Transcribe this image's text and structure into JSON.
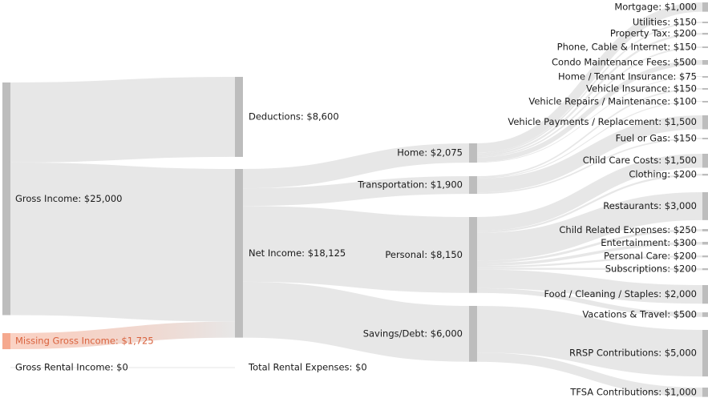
{
  "chart_data": {
    "type": "sankey",
    "title": "",
    "currency": "$",
    "nodes": [
      {
        "id": "gross",
        "label": "Gross Income: $25,000",
        "value": 25000
      },
      {
        "id": "missing",
        "label": "Missing Gross Income: $1,725",
        "value": 1725
      },
      {
        "id": "rental",
        "label": "Gross Rental Income: $0",
        "value": 0
      },
      {
        "id": "deductions",
        "label": "Deductions: $8,600",
        "value": 8600
      },
      {
        "id": "net",
        "label": "Net Income: $18,125",
        "value": 18125
      },
      {
        "id": "rentalexp",
        "label": "Total Rental Expenses: $0",
        "value": 0
      },
      {
        "id": "home",
        "label": "Home: $2,075",
        "value": 2075
      },
      {
        "id": "transport",
        "label": "Transportation: $1,900",
        "value": 1900
      },
      {
        "id": "personal",
        "label": "Personal: $8,150",
        "value": 8150
      },
      {
        "id": "savings",
        "label": "Savings/Debt: $6,000",
        "value": 6000
      },
      {
        "id": "mortgage",
        "label": "Mortgage: $1,000",
        "value": 1000
      },
      {
        "id": "utilities",
        "label": "Utilities: $150",
        "value": 150
      },
      {
        "id": "proptax",
        "label": "Property Tax: $200",
        "value": 200
      },
      {
        "id": "phone",
        "label": "Phone, Cable & Internet: $150",
        "value": 150
      },
      {
        "id": "condo",
        "label": "Condo Maintenance Fees: $500",
        "value": 500
      },
      {
        "id": "homeins",
        "label": "Home / Tenant Insurance: $75",
        "value": 75
      },
      {
        "id": "vehins",
        "label": "Vehicle Insurance: $150",
        "value": 150
      },
      {
        "id": "vehrep",
        "label": "Vehicle Repairs / Maintenance: $100",
        "value": 100
      },
      {
        "id": "vehpay",
        "label": "Vehicle Payments / Replacement: $1,500",
        "value": 1500
      },
      {
        "id": "fuel",
        "label": "Fuel or Gas: $150",
        "value": 150
      },
      {
        "id": "childcare",
        "label": "Child Care Costs: $1,500",
        "value": 1500
      },
      {
        "id": "clothing",
        "label": "Clothing: $200",
        "value": 200
      },
      {
        "id": "restaurants",
        "label": "Restaurants: $3,000",
        "value": 3000
      },
      {
        "id": "childrel",
        "label": "Child Related Expenses: $250",
        "value": 250
      },
      {
        "id": "entertain",
        "label": "Entertainment: $300",
        "value": 300
      },
      {
        "id": "perscare",
        "label": "Personal Care: $200",
        "value": 200
      },
      {
        "id": "subs",
        "label": "Subscriptions: $200",
        "value": 200
      },
      {
        "id": "food",
        "label": "Food / Cleaning / Staples: $2,000",
        "value": 2000
      },
      {
        "id": "vacations",
        "label": "Vacations & Travel: $500",
        "value": 500
      },
      {
        "id": "rrsp",
        "label": "RRSP Contributions: $5,000",
        "value": 5000
      },
      {
        "id": "tfsa",
        "label": "TFSA Contributions: $1,000",
        "value": 1000
      }
    ],
    "links": [
      {
        "source": "gross",
        "target": "deductions",
        "value": 8600
      },
      {
        "source": "gross",
        "target": "net",
        "value": 16400
      },
      {
        "source": "missing",
        "target": "net",
        "value": 1725
      },
      {
        "source": "rental",
        "target": "rentalexp",
        "value": 0
      },
      {
        "source": "net",
        "target": "home",
        "value": 2075
      },
      {
        "source": "net",
        "target": "transport",
        "value": 1900
      },
      {
        "source": "net",
        "target": "personal",
        "value": 8150
      },
      {
        "source": "net",
        "target": "savings",
        "value": 6000
      },
      {
        "source": "home",
        "target": "mortgage",
        "value": 1000
      },
      {
        "source": "home",
        "target": "utilities",
        "value": 150
      },
      {
        "source": "home",
        "target": "proptax",
        "value": 200
      },
      {
        "source": "home",
        "target": "phone",
        "value": 150
      },
      {
        "source": "home",
        "target": "condo",
        "value": 500
      },
      {
        "source": "home",
        "target": "homeins",
        "value": 75
      },
      {
        "source": "transport",
        "target": "vehins",
        "value": 150
      },
      {
        "source": "transport",
        "target": "vehrep",
        "value": 100
      },
      {
        "source": "transport",
        "target": "vehpay",
        "value": 1500
      },
      {
        "source": "transport",
        "target": "fuel",
        "value": 150
      },
      {
        "source": "personal",
        "target": "childcare",
        "value": 1500
      },
      {
        "source": "personal",
        "target": "clothing",
        "value": 200
      },
      {
        "source": "personal",
        "target": "restaurants",
        "value": 3000
      },
      {
        "source": "personal",
        "target": "childrel",
        "value": 250
      },
      {
        "source": "personal",
        "target": "entertain",
        "value": 300
      },
      {
        "source": "personal",
        "target": "perscare",
        "value": 200
      },
      {
        "source": "personal",
        "target": "subs",
        "value": 200
      },
      {
        "source": "personal",
        "target": "food",
        "value": 2000
      },
      {
        "source": "personal",
        "target": "vacations",
        "value": 500
      },
      {
        "source": "savings",
        "target": "rrsp",
        "value": 5000
      },
      {
        "source": "savings",
        "target": "tfsa",
        "value": 1000
      }
    ],
    "colors": {
      "node": "#bdbdbd",
      "link": "#e6e6e6",
      "missing_node": "#f5a88e",
      "missing_label": "#d9623d"
    }
  }
}
